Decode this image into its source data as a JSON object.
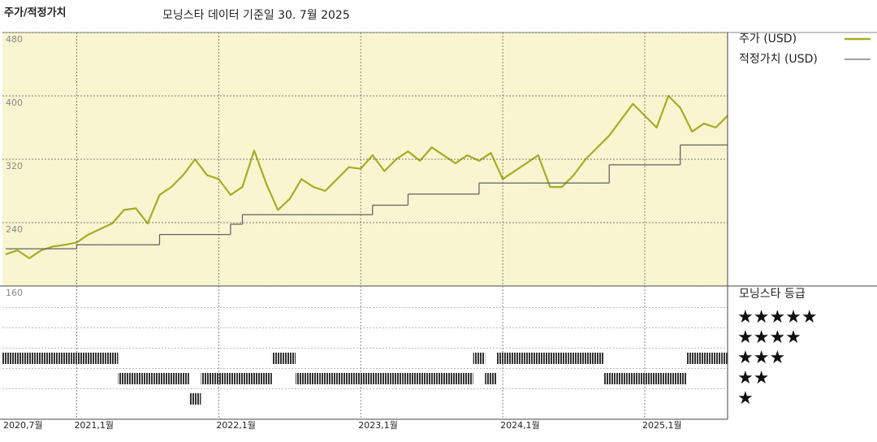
{
  "header": {
    "title": "주가/적정가치",
    "subtitle": "모닝스타 데이터 기준일 30. 7월 2025"
  },
  "chart_data": [
    {
      "type": "line",
      "x": [
        "2020-07",
        "2020-08",
        "2020-09",
        "2020-10",
        "2020-11",
        "2020-12",
        "2021-01",
        "2021-02",
        "2021-03",
        "2021-04",
        "2021-05",
        "2021-06",
        "2021-07",
        "2021-08",
        "2021-09",
        "2021-10",
        "2021-11",
        "2021-12",
        "2022-01",
        "2022-02",
        "2022-03",
        "2022-04",
        "2022-05",
        "2022-06",
        "2022-07",
        "2022-08",
        "2022-09",
        "2022-10",
        "2022-11",
        "2022-12",
        "2023-01",
        "2023-02",
        "2023-03",
        "2023-04",
        "2023-05",
        "2023-06",
        "2023-07",
        "2023-08",
        "2023-09",
        "2023-10",
        "2023-11",
        "2023-12",
        "2024-01",
        "2024-02",
        "2024-03",
        "2024-04",
        "2024-05",
        "2024-06",
        "2024-07",
        "2024-08",
        "2024-09",
        "2024-10",
        "2024-11",
        "2024-12",
        "2025-01",
        "2025-02",
        "2025-03",
        "2025-04",
        "2025-05",
        "2025-06",
        "2025-07",
        "2025-08"
      ],
      "series": [
        {
          "name": "주가 (USD)",
          "color": "#a9ab24",
          "values": [
            200,
            205,
            195,
            205,
            210,
            212,
            215,
            225,
            232,
            239,
            256,
            258,
            239,
            275,
            285,
            300,
            320,
            300,
            295,
            275,
            285,
            331,
            290,
            256,
            270,
            295,
            285,
            280,
            295,
            310,
            308,
            325,
            305,
            320,
            330,
            318,
            335,
            325,
            315,
            325,
            318,
            328,
            295,
            305,
            315,
            325,
            285,
            285,
            300,
            320,
            335,
            350,
            370,
            390,
            375,
            360,
            400,
            385,
            355,
            365,
            360,
            375
          ]
        },
        {
          "name": "적정가치 (USD)",
          "color": "#666666",
          "step": true,
          "values": [
            207,
            207,
            207,
            207,
            207,
            207,
            212,
            212,
            212,
            212,
            212,
            212,
            212,
            225,
            225,
            225,
            225,
            225,
            225,
            238,
            250,
            250,
            250,
            250,
            250,
            250,
            250,
            250,
            250,
            250,
            250,
            262,
            262,
            262,
            276,
            276,
            276,
            276,
            276,
            276,
            290,
            290,
            290,
            290,
            290,
            290,
            290,
            290,
            290,
            290,
            290,
            313,
            313,
            313,
            313,
            313,
            313,
            338,
            338,
            338,
            338,
            338
          ]
        }
      ],
      "xlim": [
        "2020-07",
        "2025-08"
      ],
      "xticks": [
        {
          "value": "2020-07",
          "label": "2020,7월"
        },
        {
          "value": "2021-01",
          "label": "2021,1월"
        },
        {
          "value": "2022-01",
          "label": "2022,1월"
        },
        {
          "value": "2023-01",
          "label": "2023,1월"
        },
        {
          "value": "2024-01",
          "label": "2024,1월"
        },
        {
          "value": "2025-01",
          "label": "2025,1월"
        }
      ],
      "ylim": [
        160,
        480
      ],
      "yticks": [
        160,
        240,
        320,
        400,
        480
      ],
      "grid": true,
      "background": "#f8f5d0"
    },
    {
      "type": "rating",
      "title": "모닝스타 등급",
      "levels": [
        {
          "value": 5,
          "label": "★★★★★"
        },
        {
          "value": 4,
          "label": "★★★★"
        },
        {
          "value": 3,
          "label": "★★★"
        },
        {
          "value": 2,
          "label": "★★"
        },
        {
          "value": 1,
          "label": "★"
        }
      ],
      "values": [
        3,
        3,
        3,
        3,
        3,
        3,
        3,
        3,
        3,
        3,
        2,
        2,
        2,
        2,
        2,
        2,
        1,
        2,
        2,
        2,
        2,
        2,
        2,
        3,
        3,
        2,
        2,
        2,
        2,
        2,
        2,
        2,
        2,
        2,
        2,
        2,
        2,
        2,
        2,
        2,
        3,
        2,
        3,
        3,
        3,
        3,
        3,
        3,
        3,
        3,
        3,
        2,
        2,
        2,
        2,
        2,
        2,
        2,
        3,
        3,
        3,
        3
      ],
      "color": "#333333"
    }
  ]
}
